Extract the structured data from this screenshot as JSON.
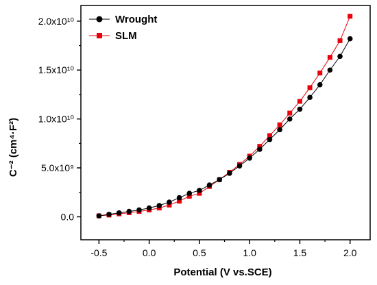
{
  "chart_data": {
    "type": "scatter",
    "xlabel": "Potential (V vs.SCE)",
    "ylabel": "C⁻² (cm⁴·F²)",
    "xlim": [
      -0.68,
      2.2
    ],
    "ylim": [
      -2350000000.0,
      21600000000.0
    ],
    "xticks": [
      -0.5,
      0.0,
      0.5,
      1.0,
      1.5,
      2.0
    ],
    "xtick_labels": [
      "-0.5",
      "0.0",
      "0.5",
      "1.0",
      "1.5",
      "2.0"
    ],
    "yticks": [
      0,
      5000000000.0,
      10000000000.0,
      15000000000.0,
      20000000000.0
    ],
    "ytick_labels": [
      "0.0",
      "5.0x10⁹",
      "1.0x10¹⁰",
      "1.5x10¹⁰",
      "2.0x10¹⁰"
    ],
    "legend_position": "top-left",
    "grid": false,
    "series": [
      {
        "name": "Wrought",
        "marker": "circle",
        "color": "#000000",
        "x": [
          -0.5,
          -0.4,
          -0.3,
          -0.2,
          -0.1,
          0.0,
          0.1,
          0.2,
          0.3,
          0.4,
          0.5,
          0.6,
          0.7,
          0.8,
          0.9,
          1.0,
          1.1,
          1.2,
          1.3,
          1.4,
          1.5,
          1.6,
          1.7,
          1.8,
          1.9,
          2.0
        ],
        "y": [
          100000000.0,
          250000000.0,
          400000000.0,
          550000000.0,
          700000000.0,
          900000000.0,
          1150000000.0,
          1500000000.0,
          1950000000.0,
          2400000000.0,
          2700000000.0,
          3250000000.0,
          3800000000.0,
          4450000000.0,
          5200000000.0,
          6000000000.0,
          6900000000.0,
          7900000000.0,
          8900000000.0,
          10000000000.0,
          11000000000.0,
          12200000000.0,
          13500000000.0,
          15000000000.0,
          16400000000.0,
          18200000000.0
        ]
      },
      {
        "name": "SLM",
        "marker": "square",
        "color": "#e8000b",
        "x": [
          -0.5,
          -0.4,
          -0.3,
          -0.2,
          -0.1,
          0.0,
          0.1,
          0.2,
          0.3,
          0.4,
          0.5,
          0.6,
          0.7,
          0.8,
          0.9,
          1.0,
          1.1,
          1.2,
          1.3,
          1.4,
          1.5,
          1.6,
          1.7,
          1.8,
          1.9,
          2.0
        ],
        "y": [
          100000000.0,
          180000000.0,
          300000000.0,
          420000000.0,
          550000000.0,
          700000000.0,
          900000000.0,
          1200000000.0,
          1600000000.0,
          2100000000.0,
          2400000000.0,
          3100000000.0,
          3800000000.0,
          4550000000.0,
          5350000000.0,
          6200000000.0,
          7200000000.0,
          8300000000.0,
          9400000000.0,
          10600000000.0,
          11800000000.0,
          13200000000.0,
          14700000000.0,
          16300000000.0,
          18000000000.0,
          20500000000.0
        ]
      }
    ]
  }
}
